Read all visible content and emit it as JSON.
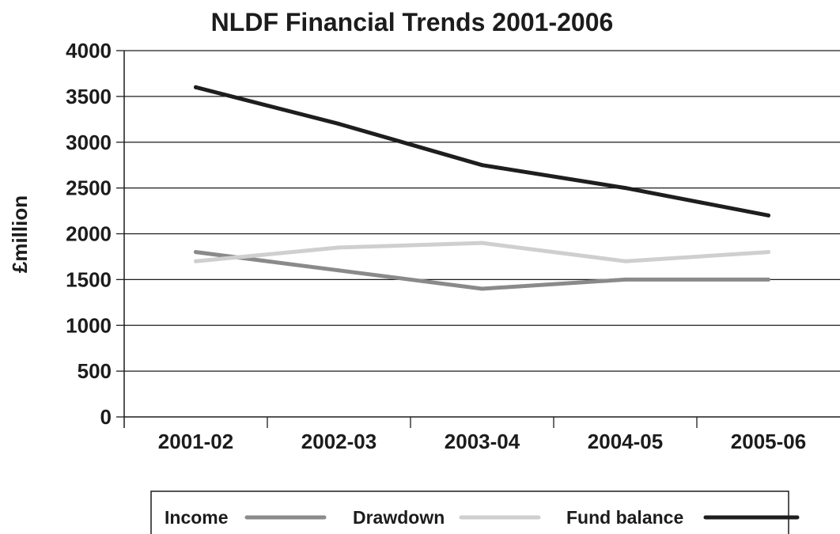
{
  "chart_data": {
    "type": "line",
    "title": "NLDF Financial Trends 2001-2006",
    "xlabel": "",
    "ylabel": "£million",
    "categories": [
      "2001-02",
      "2002-03",
      "2003-04",
      "2004-05",
      "2005-06"
    ],
    "ylim": [
      0,
      4000
    ],
    "yticks": [
      "0",
      "500",
      "1000",
      "1500",
      "2000",
      "2500",
      "3000",
      "3500",
      "4000"
    ],
    "grid": true,
    "legend_position": "bottom",
    "series": [
      {
        "name": "Income",
        "color": "#8a8a8a",
        "values": [
          1800,
          1600,
          1400,
          1500,
          1500
        ]
      },
      {
        "name": "Drawdown",
        "color": "#cfcfcf",
        "values": [
          1700,
          1850,
          1900,
          1700,
          1800
        ]
      },
      {
        "name": "Fund balance",
        "color": "#1e1e1e",
        "values": [
          3600,
          3200,
          2750,
          2500,
          2200
        ]
      }
    ]
  }
}
